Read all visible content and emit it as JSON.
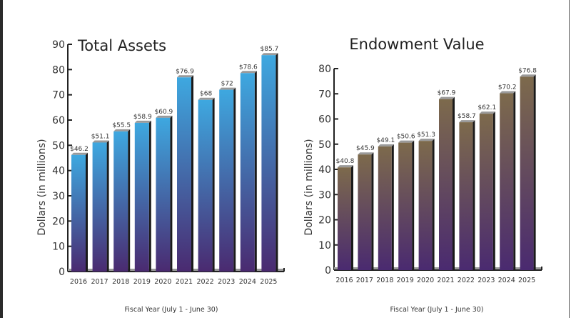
{
  "chart_data": [
    {
      "type": "bar",
      "title": "Total Assets",
      "xlabel": "Fiscal Year (July 1 - June 30)",
      "ylabel": "Dollars (in millions)",
      "categories": [
        "2016",
        "2017",
        "2018",
        "2019",
        "2020",
        "2021",
        "2022",
        "2023",
        "2024",
        "2025"
      ],
      "values": [
        46.2,
        51.1,
        55.5,
        58.9,
        60.9,
        76.9,
        68,
        72,
        78.6,
        85.7
      ],
      "data_labels": [
        "$46.2",
        "$51.1",
        "$55.5",
        "$58.9",
        "$60.9",
        "$76.9",
        "$68",
        "$72",
        "$78.6",
        "$85.7"
      ],
      "ylim": [
        0,
        90
      ],
      "yticks": [
        0,
        10,
        20,
        30,
        40,
        50,
        60,
        70,
        80,
        90
      ],
      "grid": false,
      "colors": {
        "top": "#3ea8e0",
        "bottom": "#4a2a70"
      }
    },
    {
      "type": "bar",
      "title": "Endowment Value",
      "xlabel": "Fiscal Year (July 1 - June 30)",
      "ylabel": "Dollars (in millions)",
      "categories": [
        "2016",
        "2017",
        "2018",
        "2019",
        "2020",
        "2021",
        "2022",
        "2023",
        "2024",
        "2025"
      ],
      "values": [
        40.8,
        45.9,
        49.1,
        50.6,
        51.3,
        67.9,
        58.7,
        62.1,
        70.2,
        76.8
      ],
      "data_labels": [
        "$40.8",
        "$45.9",
        "$49.1",
        "$50.6",
        "$51.3",
        "$67.9",
        "$58.7",
        "$62.1",
        "$70.2",
        "$76.8"
      ],
      "ylim": [
        0,
        80
      ],
      "yticks": [
        0,
        10,
        20,
        30,
        40,
        50,
        60,
        70,
        80
      ],
      "grid": false,
      "colors": {
        "top": "#7d6a4c",
        "bottom": "#4a2a70"
      }
    }
  ]
}
